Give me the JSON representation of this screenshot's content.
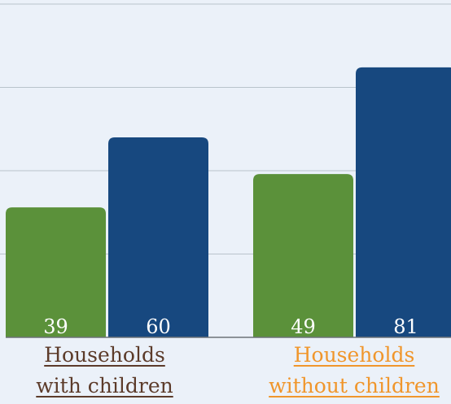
{
  "colors": {
    "series_a": "#5b913a",
    "series_b": "#17487f",
    "category_1_text": "#5c3b2a",
    "category_2_text": "#f0962c"
  },
  "chart_data": {
    "type": "bar",
    "categories": [
      [
        "Households",
        "with children"
      ],
      [
        "Households",
        "without children"
      ]
    ],
    "series": [
      {
        "values": [
          39,
          49
        ]
      },
      {
        "values": [
          60,
          81
        ]
      }
    ],
    "ylim": [
      0,
      100
    ],
    "grid": true,
    "legend": "none"
  }
}
